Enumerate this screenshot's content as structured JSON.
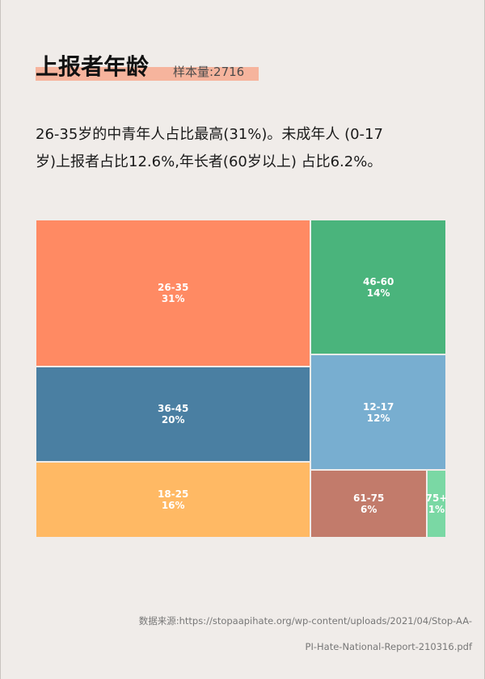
{
  "header": {
    "title": "上报者年龄",
    "sample": "样本量:2716"
  },
  "description": {
    "line1": "26-35岁的中青年人占比最高(31%)。未成年人 (0-17",
    "line2": "岁)上报者占比12.6%,年长者(60岁以上) 占比6.2%。"
  },
  "chart_data": {
    "type": "treemap",
    "title": "上报者年龄",
    "cells": [
      {
        "label": "26-35",
        "value": 31,
        "value_label": "31%",
        "color": "#ff8a63"
      },
      {
        "label": "36-45",
        "value": 20,
        "value_label": "20%",
        "color": "#4a7fa2"
      },
      {
        "label": "18-25",
        "value": 16,
        "value_label": "16%",
        "color": "#ffb964"
      },
      {
        "label": "46-60",
        "value": 14,
        "value_label": "14%",
        "color": "#4ab47c"
      },
      {
        "label": "12-17",
        "value": 12,
        "value_label": "12%",
        "color": "#78aed0"
      },
      {
        "label": "61-75",
        "value": 6,
        "value_label": "6%",
        "color": "#c27b6b"
      },
      {
        "label": "75+",
        "value": 1,
        "value_label": "1%",
        "color": "#7ad8a4"
      }
    ]
  },
  "footer": {
    "source_label": "数据来源:",
    "source_url_part1": "https://stopaapihate.org/wp-content/uploads/2021/04/Stop-AA-",
    "source_url_part2": "PI-Hate-National-Report-210316.pdf"
  }
}
